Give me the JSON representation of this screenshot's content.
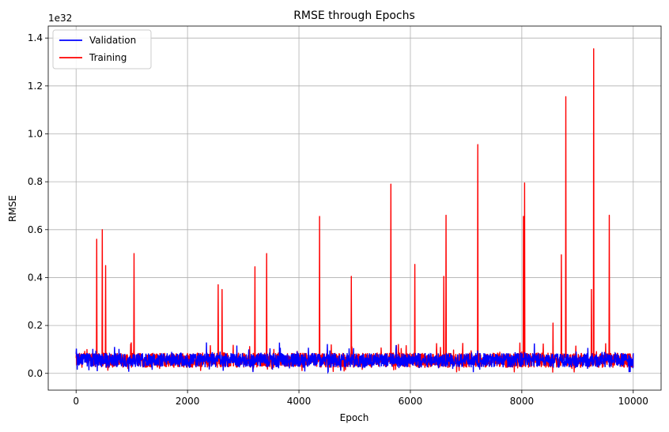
{
  "chart_data": {
    "type": "line",
    "title": "RMSE through Epochs",
    "xlabel": "Epoch",
    "ylabel": "RMSE",
    "y_offset_label": "1e32",
    "xlim": [
      -500,
      10500
    ],
    "ylim": [
      -0.07,
      1.45
    ],
    "x_ticks": [
      0,
      2000,
      4000,
      6000,
      8000,
      10000
    ],
    "x_tick_labels": [
      "0",
      "2000",
      "4000",
      "6000",
      "8000",
      "10000"
    ],
    "y_ticks": [
      0.0,
      0.2,
      0.4,
      0.6,
      0.8,
      1.0,
      1.2,
      1.4
    ],
    "y_tick_labels": [
      "0.0",
      "0.2",
      "0.4",
      "0.6",
      "0.8",
      "1.0",
      "1.2",
      "1.4"
    ],
    "grid": true,
    "legend_position": "top-left",
    "x_range": [
      0,
      10000
    ],
    "baseline": {
      "mean": 0.055,
      "min": 0.005,
      "max": 0.13
    },
    "series": [
      {
        "name": "Validation",
        "color": "#0000ff",
        "peaks": []
      },
      {
        "name": "Training",
        "color": "#ff0000",
        "peaks": [
          {
            "x": 370,
            "y": 0.56
          },
          {
            "x": 470,
            "y": 0.6
          },
          {
            "x": 530,
            "y": 0.45
          },
          {
            "x": 1040,
            "y": 0.5
          },
          {
            "x": 2550,
            "y": 0.37
          },
          {
            "x": 2620,
            "y": 0.35
          },
          {
            "x": 3210,
            "y": 0.445
          },
          {
            "x": 3420,
            "y": 0.5
          },
          {
            "x": 4370,
            "y": 0.655
          },
          {
            "x": 4940,
            "y": 0.405
          },
          {
            "x": 5650,
            "y": 0.79
          },
          {
            "x": 6080,
            "y": 0.455
          },
          {
            "x": 6600,
            "y": 0.405
          },
          {
            "x": 6640,
            "y": 0.66
          },
          {
            "x": 7210,
            "y": 0.955
          },
          {
            "x": 8030,
            "y": 0.655
          },
          {
            "x": 8050,
            "y": 0.795
          },
          {
            "x": 8560,
            "y": 0.21
          },
          {
            "x": 8710,
            "y": 0.495
          },
          {
            "x": 8790,
            "y": 1.155
          },
          {
            "x": 9250,
            "y": 0.35
          },
          {
            "x": 9290,
            "y": 1.355
          },
          {
            "x": 9570,
            "y": 0.66
          }
        ]
      }
    ]
  }
}
